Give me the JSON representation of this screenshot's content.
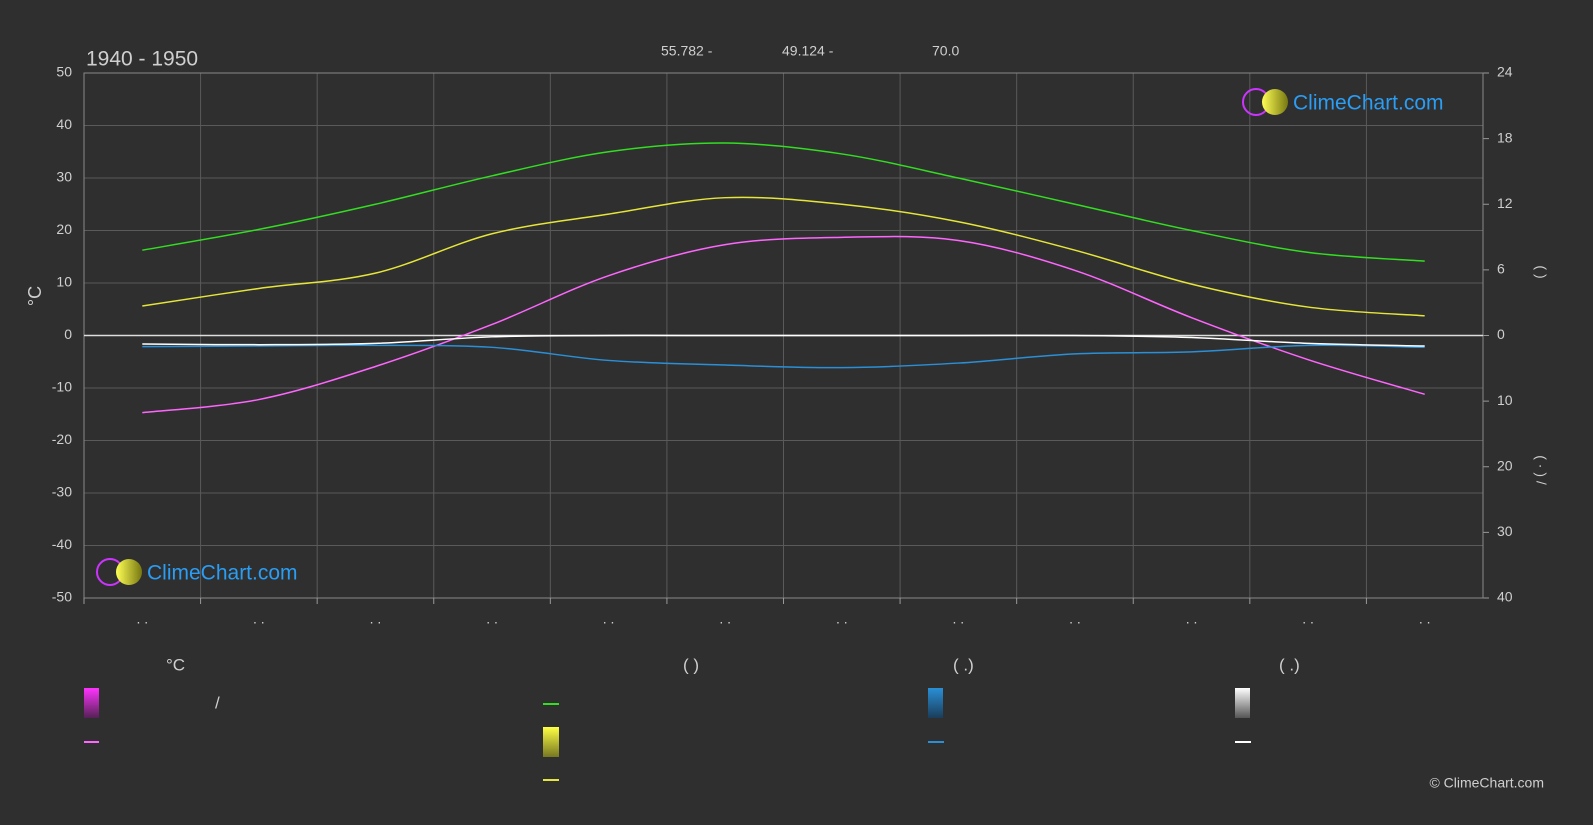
{
  "chart_data": {
    "type": "line",
    "title": "1940 - 1950",
    "header_notes": [
      "55.782 -",
      "49.124 -",
      "70.0"
    ],
    "ylabel": "°C",
    "y2label": "(      )",
    "y3label": "(  ·  )    /",
    "categories": [
      ". .",
      ". .",
      ". .",
      ". .",
      ". .",
      ". .",
      ". .",
      ". .",
      ". .",
      ". .",
      ". .",
      ". ."
    ],
    "ylim": [
      -50,
      50
    ],
    "yticks": [
      50,
      40,
      30,
      20,
      10,
      0,
      -10,
      -20,
      -30,
      -40,
      -50
    ],
    "y2lim": [
      0,
      24
    ],
    "y2ticks": [
      24,
      18,
      12,
      6,
      0
    ],
    "y3lim": [
      0,
      40
    ],
    "y3ticks": [
      10,
      20,
      30,
      40
    ],
    "grid": true,
    "series": [
      {
        "color": "#33dd22",
        "axis": "y2",
        "values": [
          7.8,
          9.7,
          12.0,
          14.6,
          16.8,
          17.6,
          16.6,
          14.4,
          12.0,
          9.6,
          7.6,
          6.8
        ]
      },
      {
        "color": "#e5e53a",
        "axis": "y2",
        "values": [
          2.7,
          4.3,
          5.7,
          9.3,
          11.1,
          12.6,
          12.0,
          10.4,
          7.8,
          4.7,
          2.6,
          1.8
        ]
      },
      {
        "color": "#ff66ff",
        "values": [
          -14.7,
          -12.2,
          -5.9,
          2.1,
          11.4,
          17.3,
          18.7,
          18.1,
          12.4,
          3.4,
          -4.6,
          -11.2
        ]
      },
      {
        "color": "#2a8fd6",
        "axis": "y3",
        "values": [
          1.7,
          1.6,
          1.5,
          1.8,
          3.8,
          4.5,
          4.9,
          4.2,
          2.8,
          2.5,
          1.5,
          1.8
        ]
      },
      {
        "color": "#ffffff",
        "axis": "y3",
        "values": [
          1.3,
          1.4,
          1.2,
          0.2,
          0,
          0,
          0,
          0,
          0,
          0.3,
          1.2,
          1.6
        ]
      }
    ]
  },
  "legend": {
    "headers": [
      "°C",
      "(          )",
      "(   .)",
      "(   .)"
    ],
    "slash": "/"
  },
  "logo": "ClimeChart.com",
  "copyright": "© ClimeChart.com"
}
